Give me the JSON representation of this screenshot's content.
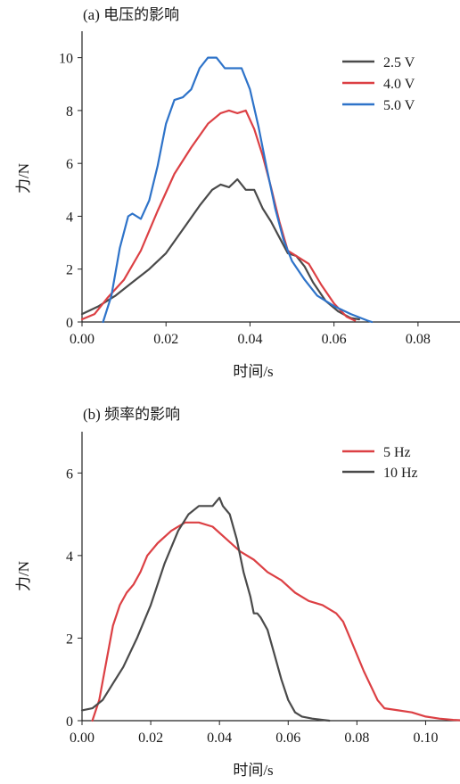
{
  "chart_data": [
    {
      "type": "line",
      "title": "(a) 电压的影响",
      "xlabel": "时间/s",
      "ylabel": "力/N",
      "xlim": [
        0,
        0.09
      ],
      "ylim": [
        0,
        11
      ],
      "xticks": [
        "0.00",
        "0.02",
        "0.04",
        "0.06",
        "0.08"
      ],
      "yticks": [
        "0",
        "2",
        "4",
        "6",
        "8",
        "10"
      ],
      "legend_position": "top-right",
      "series": [
        {
          "name": "2.5 V",
          "color": "#4a4a4a",
          "x": [
            0,
            0.004,
            0.008,
            0.012,
            0.016,
            0.02,
            0.024,
            0.028,
            0.031,
            0.033,
            0.035,
            0.037,
            0.039,
            0.041,
            0.043,
            0.045,
            0.047,
            0.049,
            0.051,
            0.053,
            0.055,
            0.058,
            0.061,
            0.064,
            0.066
          ],
          "y": [
            0.3,
            0.6,
            1.0,
            1.5,
            2.0,
            2.6,
            3.5,
            4.4,
            5.0,
            5.2,
            5.1,
            5.4,
            5.0,
            5.0,
            4.3,
            3.8,
            3.2,
            2.6,
            2.5,
            2.1,
            1.5,
            0.8,
            0.4,
            0.15,
            0.1
          ]
        },
        {
          "name": "4.0 V",
          "color": "#dc4044",
          "x": [
            0,
            0.003,
            0.006,
            0.01,
            0.014,
            0.018,
            0.022,
            0.026,
            0.03,
            0.033,
            0.035,
            0.037,
            0.039,
            0.041,
            0.043,
            0.045,
            0.047,
            0.049,
            0.051,
            0.054,
            0.057,
            0.06,
            0.063,
            0.065
          ],
          "y": [
            0.1,
            0.3,
            0.9,
            1.6,
            2.7,
            4.2,
            5.6,
            6.6,
            7.5,
            7.9,
            8.0,
            7.9,
            8.0,
            7.3,
            6.3,
            5.1,
            3.8,
            2.7,
            2.5,
            2.2,
            1.4,
            0.7,
            0.2,
            0.05
          ]
        },
        {
          "name": "5.0 V",
          "color": "#2e73c9",
          "x": [
            0.005,
            0.007,
            0.009,
            0.011,
            0.012,
            0.014,
            0.016,
            0.018,
            0.02,
            0.022,
            0.024,
            0.026,
            0.028,
            0.03,
            0.032,
            0.034,
            0.036,
            0.038,
            0.04,
            0.042,
            0.044,
            0.046,
            0.048,
            0.05,
            0.053,
            0.056,
            0.06,
            0.064,
            0.068,
            0.069
          ],
          "y": [
            0,
            1.0,
            2.8,
            4.0,
            4.1,
            3.9,
            4.6,
            5.9,
            7.5,
            8.4,
            8.5,
            8.8,
            9.6,
            10.0,
            10.0,
            9.6,
            9.6,
            9.6,
            8.8,
            7.4,
            5.8,
            4.3,
            3.1,
            2.3,
            1.6,
            1.0,
            0.6,
            0.3,
            0.05,
            0
          ]
        }
      ]
    },
    {
      "type": "line",
      "title": "(b) 频率的影响",
      "xlabel": "时间/s",
      "ylabel": "力/N",
      "xlim": [
        0,
        0.11
      ],
      "ylim": [
        0,
        7
      ],
      "xticks": [
        "0.00",
        "0.02",
        "0.04",
        "0.06",
        "0.08",
        "0.10"
      ],
      "yticks": [
        "0",
        "2",
        "4",
        "6"
      ],
      "legend_position": "top-right",
      "series": [
        {
          "name": "5 Hz",
          "color": "#dc4044",
          "x": [
            0.003,
            0.005,
            0.007,
            0.009,
            0.011,
            0.013,
            0.015,
            0.017,
            0.019,
            0.022,
            0.026,
            0.03,
            0.034,
            0.038,
            0.042,
            0.046,
            0.05,
            0.054,
            0.058,
            0.062,
            0.066,
            0.07,
            0.074,
            0.076,
            0.078,
            0.082,
            0.086,
            0.088,
            0.092,
            0.096,
            0.1,
            0.104,
            0.108,
            0.11
          ],
          "y": [
            0,
            0.5,
            1.4,
            2.3,
            2.8,
            3.1,
            3.3,
            3.6,
            4.0,
            4.3,
            4.6,
            4.8,
            4.8,
            4.7,
            4.4,
            4.1,
            3.9,
            3.6,
            3.4,
            3.1,
            2.9,
            2.8,
            2.6,
            2.4,
            2.0,
            1.2,
            0.5,
            0.3,
            0.25,
            0.2,
            0.1,
            0.05,
            0.02,
            0.01
          ]
        },
        {
          "name": "10 Hz",
          "color": "#4a4a4a",
          "x": [
            0,
            0.003,
            0.006,
            0.009,
            0.012,
            0.016,
            0.02,
            0.024,
            0.028,
            0.031,
            0.034,
            0.036,
            0.038,
            0.039,
            0.04,
            0.041,
            0.043,
            0.045,
            0.047,
            0.049,
            0.05,
            0.051,
            0.052,
            0.054,
            0.056,
            0.058,
            0.06,
            0.062,
            0.064,
            0.067,
            0.07,
            0.072
          ],
          "y": [
            0.25,
            0.3,
            0.5,
            0.9,
            1.3,
            2.0,
            2.8,
            3.8,
            4.6,
            5.0,
            5.2,
            5.2,
            5.2,
            5.3,
            5.4,
            5.2,
            5.0,
            4.4,
            3.6,
            3.0,
            2.6,
            2.6,
            2.5,
            2.2,
            1.6,
            1.0,
            0.5,
            0.2,
            0.1,
            0.05,
            0.02,
            0.0
          ]
        }
      ]
    }
  ]
}
